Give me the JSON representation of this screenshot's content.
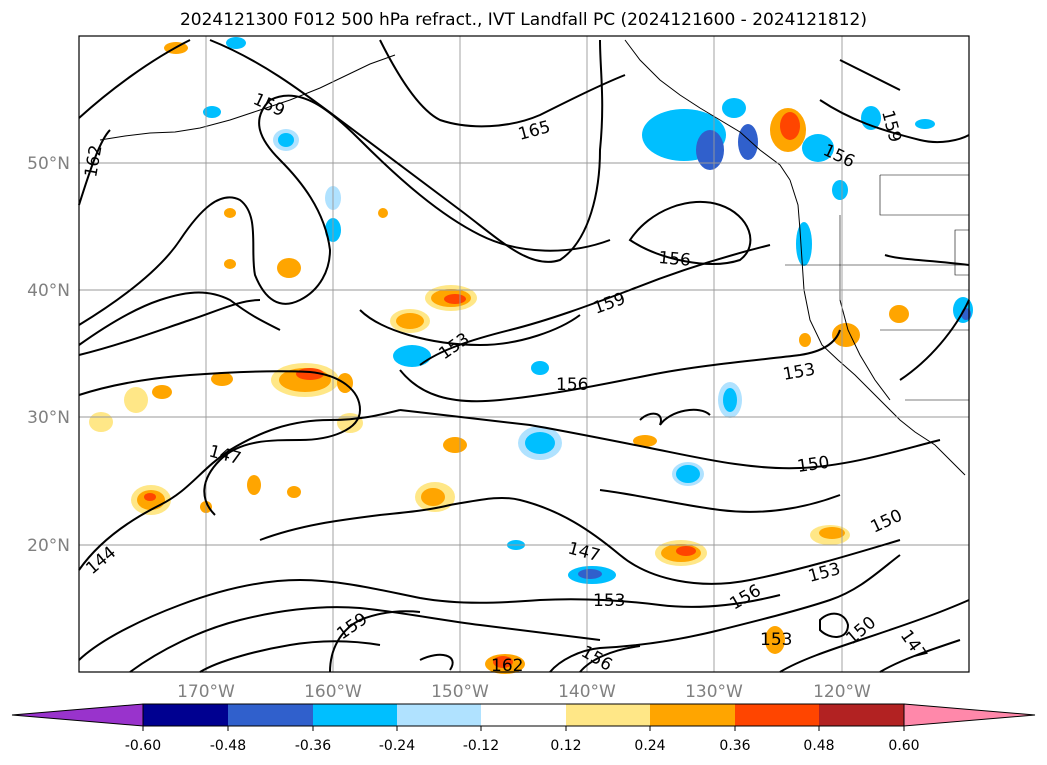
{
  "title": "2024121300 F012 500 hPa refract., IVT Landfall PC (2024121600 - 2024121812)",
  "map": {
    "lon_range": [
      -180,
      -110
    ],
    "lat_range": [
      10,
      60
    ],
    "lon_ticks": [
      -170,
      -160,
      -150,
      -140,
      -130,
      -120
    ],
    "lon_tick_labels": [
      "170°W",
      "160°W",
      "150°W",
      "140°W",
      "130°W",
      "120°W"
    ],
    "lat_ticks": [
      20,
      30,
      40,
      50
    ],
    "lat_tick_labels": [
      "20°N",
      "30°N",
      "40°N",
      "50°N"
    ],
    "grid": true,
    "contour_labels": [
      "159",
      "165",
      "162",
      "156",
      "159",
      "156",
      "159",
      "153",
      "156",
      "153",
      "150",
      "147",
      "144",
      "147",
      "150",
      "153",
      "156",
      "159",
      "162",
      "156",
      "153",
      "150",
      "147",
      "153"
    ]
  },
  "colorbar": {
    "tick_labels": [
      "-0.60",
      "-0.48",
      "-0.36",
      "-0.24",
      "-0.12",
      "0.12",
      "0.24",
      "0.36",
      "0.48",
      "0.60"
    ],
    "colors": [
      "#9933cc",
      "#000090",
      "#3060cc",
      "#00bfff",
      "#b0e2ff",
      "#ffffff",
      "#ffe787",
      "#ffa500",
      "#ff4500",
      "#b22222",
      "#ff88aa"
    ],
    "extend": "both"
  }
}
